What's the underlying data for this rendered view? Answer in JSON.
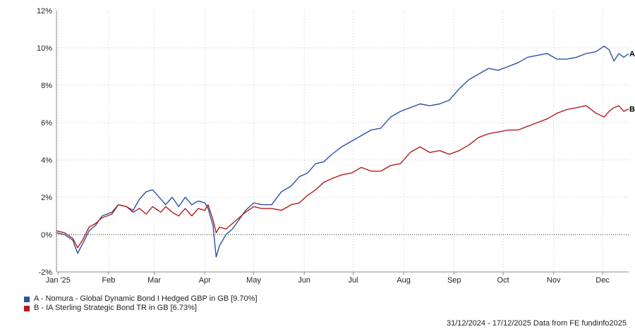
{
  "chart_data": {
    "type": "line",
    "ylim": [
      -2,
      12
    ],
    "y_ticks": [
      "-2%",
      "0%",
      "2%",
      "4%",
      "6%",
      "8%",
      "10%",
      "12%"
    ],
    "y_tick_values": [
      -2,
      0,
      2,
      4,
      6,
      8,
      10,
      12
    ],
    "x_ticks": [
      {
        "label": "Jan '25",
        "date": "2025-01-01"
      },
      {
        "label": "Feb",
        "date": "2025-02-01"
      },
      {
        "label": "Mar",
        "date": "2025-03-01"
      },
      {
        "label": "Apr",
        "date": "2025-04-01"
      },
      {
        "label": "May",
        "date": "2025-05-01"
      },
      {
        "label": "Jun",
        "date": "2025-06-01"
      },
      {
        "label": "Jul",
        "date": "2025-07-01"
      },
      {
        "label": "Aug",
        "date": "2025-08-01"
      },
      {
        "label": "Sep",
        "date": "2025-09-01"
      },
      {
        "label": "Oct",
        "date": "2025-10-01"
      },
      {
        "label": "Nov",
        "date": "2025-11-01"
      },
      {
        "label": "Dec",
        "date": "2025-12-01"
      }
    ],
    "x_range": [
      "2024-12-31",
      "2025-12-17"
    ],
    "grid": "vertical dotted and horizontal dotted",
    "zero_line": "dotted",
    "series": [
      {
        "name": "A - Nomura - Global Dynamic Bond I Hedged GBP in GB [9.70%]",
        "end_label": "A",
        "color": "#2a52a3",
        "x": [
          "2024-12-31",
          "2025-01-05",
          "2025-01-10",
          "2025-01-13",
          "2025-01-16",
          "2025-01-20",
          "2025-01-24",
          "2025-01-28",
          "2025-02-03",
          "2025-02-07",
          "2025-02-12",
          "2025-02-16",
          "2025-02-20",
          "2025-02-24",
          "2025-02-28",
          "2025-03-05",
          "2025-03-08",
          "2025-03-12",
          "2025-03-16",
          "2025-03-20",
          "2025-03-24",
          "2025-03-28",
          "2025-04-01",
          "2025-04-03",
          "2025-04-06",
          "2025-04-08",
          "2025-04-10",
          "2025-04-14",
          "2025-04-18",
          "2025-04-22",
          "2025-04-26",
          "2025-05-01",
          "2025-05-06",
          "2025-05-12",
          "2025-05-18",
          "2025-05-24",
          "2025-05-29",
          "2025-06-03",
          "2025-06-08",
          "2025-06-13",
          "2025-06-18",
          "2025-06-24",
          "2025-06-30",
          "2025-07-06",
          "2025-07-12",
          "2025-07-18",
          "2025-07-24",
          "2025-07-30",
          "2025-08-05",
          "2025-08-11",
          "2025-08-17",
          "2025-08-23",
          "2025-08-29",
          "2025-09-04",
          "2025-09-10",
          "2025-09-16",
          "2025-09-22",
          "2025-09-28",
          "2025-10-04",
          "2025-10-10",
          "2025-10-16",
          "2025-10-22",
          "2025-10-28",
          "2025-11-03",
          "2025-11-09",
          "2025-11-15",
          "2025-11-21",
          "2025-11-27",
          "2025-12-02",
          "2025-12-05",
          "2025-12-08",
          "2025-12-11",
          "2025-12-14",
          "2025-12-17"
        ],
        "values": [
          0.1,
          0.0,
          -0.3,
          -1.0,
          -0.5,
          0.2,
          0.5,
          1.0,
          1.2,
          1.6,
          1.5,
          1.3,
          1.9,
          2.3,
          2.4,
          1.9,
          1.6,
          2.0,
          1.5,
          2.0,
          1.6,
          1.8,
          1.7,
          1.4,
          0.5,
          -1.2,
          -0.6,
          0.0,
          0.3,
          0.8,
          1.3,
          1.7,
          1.6,
          1.6,
          2.3,
          2.6,
          3.1,
          3.3,
          3.8,
          3.9,
          4.3,
          4.7,
          5.0,
          5.3,
          5.6,
          5.7,
          6.3,
          6.6,
          6.8,
          7.0,
          6.9,
          7.0,
          7.2,
          7.8,
          8.3,
          8.6,
          8.9,
          8.8,
          9.0,
          9.2,
          9.5,
          9.6,
          9.7,
          9.4,
          9.4,
          9.5,
          9.7,
          9.8,
          10.1,
          9.9,
          9.3,
          9.7,
          9.5,
          9.7
        ]
      },
      {
        "name": "B - IA Sterling Strategic Bond TR in GB [6.73%]",
        "end_label": "B",
        "color": "#b51a1a",
        "x": [
          "2024-12-31",
          "2025-01-05",
          "2025-01-10",
          "2025-01-13",
          "2025-01-16",
          "2025-01-20",
          "2025-01-24",
          "2025-01-28",
          "2025-02-03",
          "2025-02-07",
          "2025-02-12",
          "2025-02-16",
          "2025-02-20",
          "2025-02-24",
          "2025-02-28",
          "2025-03-05",
          "2025-03-08",
          "2025-03-12",
          "2025-03-16",
          "2025-03-20",
          "2025-03-24",
          "2025-03-28",
          "2025-04-01",
          "2025-04-03",
          "2025-04-06",
          "2025-04-08",
          "2025-04-10",
          "2025-04-14",
          "2025-04-18",
          "2025-04-22",
          "2025-04-26",
          "2025-05-01",
          "2025-05-06",
          "2025-05-12",
          "2025-05-18",
          "2025-05-24",
          "2025-05-29",
          "2025-06-03",
          "2025-06-08",
          "2025-06-13",
          "2025-06-18",
          "2025-06-24",
          "2025-06-30",
          "2025-07-06",
          "2025-07-12",
          "2025-07-18",
          "2025-07-24",
          "2025-07-30",
          "2025-08-05",
          "2025-08-11",
          "2025-08-17",
          "2025-08-23",
          "2025-08-29",
          "2025-09-04",
          "2025-09-10",
          "2025-09-16",
          "2025-09-22",
          "2025-09-28",
          "2025-10-04",
          "2025-10-10",
          "2025-10-16",
          "2025-10-22",
          "2025-10-28",
          "2025-11-03",
          "2025-11-09",
          "2025-11-15",
          "2025-11-21",
          "2025-11-27",
          "2025-12-02",
          "2025-12-05",
          "2025-12-08",
          "2025-12-11",
          "2025-12-14",
          "2025-12-17"
        ],
        "values": [
          0.2,
          0.1,
          -0.2,
          -0.7,
          -0.3,
          0.4,
          0.6,
          0.9,
          1.1,
          1.6,
          1.5,
          1.2,
          1.4,
          1.1,
          1.5,
          1.2,
          1.5,
          1.2,
          1.0,
          1.4,
          1.0,
          1.4,
          1.3,
          1.6,
          0.8,
          0.1,
          0.4,
          0.3,
          0.6,
          0.9,
          1.2,
          1.5,
          1.4,
          1.4,
          1.3,
          1.6,
          1.7,
          2.1,
          2.4,
          2.8,
          3.0,
          3.2,
          3.3,
          3.6,
          3.4,
          3.4,
          3.7,
          3.8,
          4.4,
          4.7,
          4.4,
          4.5,
          4.3,
          4.5,
          4.8,
          5.2,
          5.4,
          5.5,
          5.6,
          5.6,
          5.8,
          6.0,
          6.2,
          6.5,
          6.7,
          6.8,
          6.9,
          6.5,
          6.3,
          6.6,
          6.8,
          6.9,
          6.6,
          6.73
        ]
      }
    ]
  },
  "legend": {
    "items": [
      {
        "label": "A - Nomura - Global Dynamic Bond I Hedged GBP in GB [9.70%]",
        "color": "#2a52a3"
      },
      {
        "label": "B - IA Sterling Strategic Bond TR in GB [6.73%]",
        "color": "#b51a1a"
      }
    ]
  },
  "footer": {
    "text": "31/12/2024 - 17/12/2025 Data from FE fundinfo2025"
  }
}
